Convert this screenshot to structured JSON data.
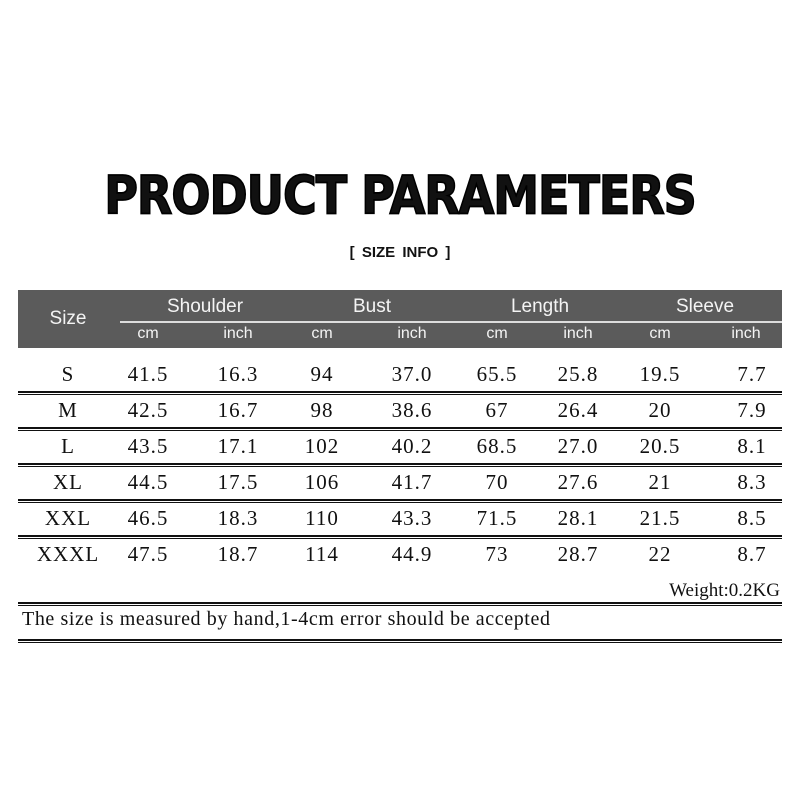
{
  "title": "PRODUCT PARAMETERS",
  "subtitle": "[ SIZE  INFO ]",
  "table": {
    "size_header": "Size",
    "groups": [
      "Shoulder",
      "Bust",
      "Length",
      "Sleeve"
    ],
    "units": [
      "cm",
      "inch",
      "cm",
      "inch",
      "cm",
      "inch",
      "cm",
      "inch"
    ],
    "rows": [
      [
        "S",
        "41.5",
        "16.3",
        "94",
        "37.0",
        "65.5",
        "25.8",
        "19.5",
        "7.7"
      ],
      [
        "M",
        "42.5",
        "16.7",
        "98",
        "38.6",
        "67",
        "26.4",
        "20",
        "7.9"
      ],
      [
        "L",
        "43.5",
        "17.1",
        "102",
        "40.2",
        "68.5",
        "27.0",
        "20.5",
        "8.1"
      ],
      [
        "XL",
        "44.5",
        "17.5",
        "106",
        "41.7",
        "70",
        "27.6",
        "21",
        "8.3"
      ],
      [
        "XXL",
        "46.5",
        "18.3",
        "110",
        "43.3",
        "71.5",
        "28.1",
        "21.5",
        "8.5"
      ],
      [
        "XXXL",
        "47.5",
        "18.7",
        "114",
        "44.9",
        "73",
        "28.7",
        "22",
        "8.7"
      ]
    ]
  },
  "weight": "Weight:0.2KG",
  "note": "The size is measured by hand,1-4cm error should be accepted",
  "colors": {
    "header_bg": "#5b5b5b",
    "header_text": "#f4f4f4"
  }
}
